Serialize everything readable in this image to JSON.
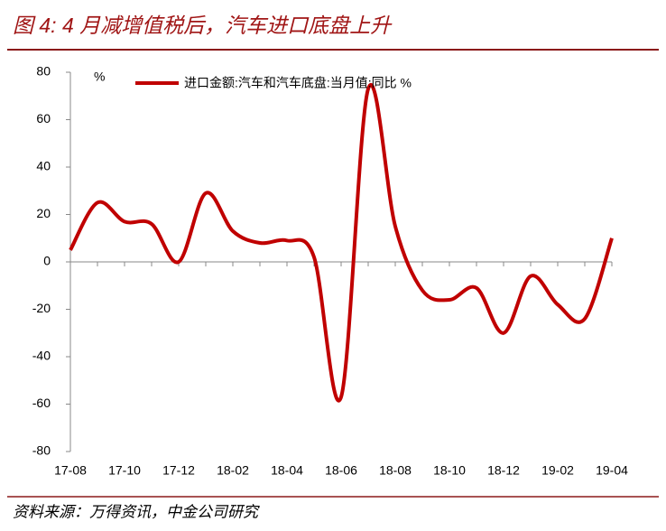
{
  "chart_data": {
    "type": "line",
    "title": "图 4: 4 月减增值税后，汽车进口底盘上升",
    "source": "资料来源：万得资讯，中金公司研究",
    "y_unit": "%",
    "categories": [
      "17-08",
      null,
      "17-10",
      null,
      "17-12",
      null,
      "18-02",
      null,
      "18-04",
      null,
      "18-06",
      null,
      "18-08",
      null,
      "18-10",
      null,
      "18-12",
      null,
      "19-02",
      null,
      "19-04"
    ],
    "series": [
      {
        "name": "进口金额:汽车和汽车底盘:当月值:同比 %",
        "color": "#c00000",
        "values": [
          5,
          25,
          17,
          16,
          0,
          29,
          13,
          8,
          9,
          2,
          -57,
          73,
          15,
          -12,
          -16,
          -11,
          -30,
          -6,
          -18,
          -24,
          10
        ]
      }
    ],
    "ylim": [
      -80,
      80
    ],
    "yticks": [
      -80,
      -60,
      -40,
      -20,
      0,
      20,
      40,
      60,
      80
    ],
    "legend": "top"
  }
}
